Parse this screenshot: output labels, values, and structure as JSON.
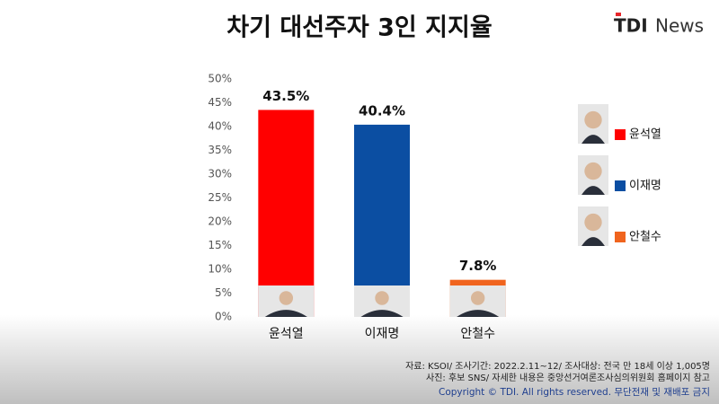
{
  "chart_data": {
    "type": "bar",
    "title": "차기 대선주자 3인 지지율",
    "categories": [
      "윤석열",
      "이재명",
      "안철수"
    ],
    "values": [
      43.5,
      40.4,
      7.8
    ],
    "value_labels": [
      "43.5%",
      "40.4%",
      "7.8%"
    ],
    "colors": [
      "#ff0000",
      "#0b4ea2",
      "#f0641e"
    ],
    "ylim": [
      0,
      50
    ],
    "yticks": [
      {
        "value": 0,
        "label": "0%"
      },
      {
        "value": 5,
        "label": "5%"
      },
      {
        "value": 10,
        "label": "10%"
      },
      {
        "value": 15,
        "label": "15%"
      },
      {
        "value": 20,
        "label": "20%"
      },
      {
        "value": 25,
        "label": "25%"
      },
      {
        "value": 30,
        "label": "30%"
      },
      {
        "value": 35,
        "label": "35%"
      },
      {
        "value": 40,
        "label": "40%"
      },
      {
        "value": 45,
        "label": "45%"
      },
      {
        "value": 50,
        "label": "50%"
      }
    ],
    "grid": false,
    "legend": "right"
  },
  "logo": {
    "brand": "TDI",
    "name": "News"
  },
  "source": [
    "자료: KSOI/ 조사기간: 2022.2.11~12/ 조사대상: 전국 만 18세 이상 1,005명",
    "사진: 후보 SNS/ 자세한 내용은 중앙선거여론조사심의위원회 홈페이지 참고"
  ],
  "copyright": "Copyright © TDI. All rights reserved. 무단전재 및 재배포 금지"
}
